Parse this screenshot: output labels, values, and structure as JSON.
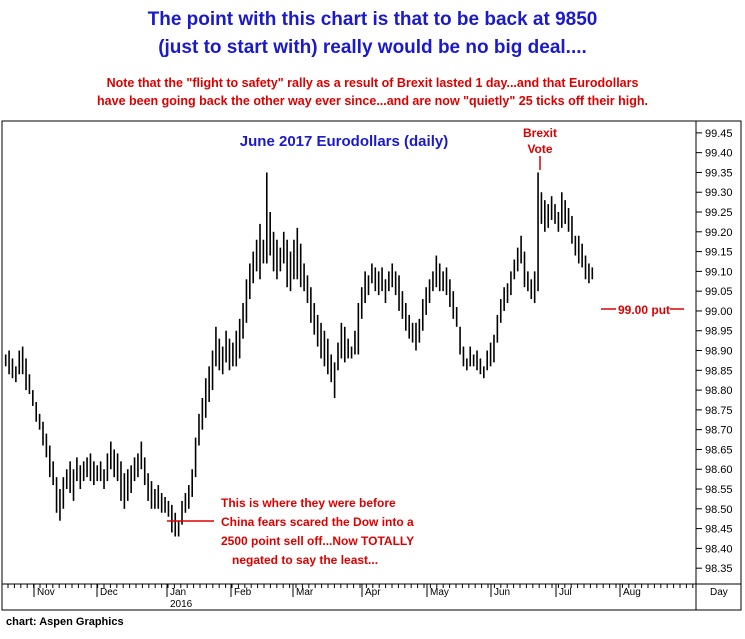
{
  "headline": {
    "line1": "The point with this chart is that to be back at 9850",
    "line2": "(just to start with) really would be no big deal...."
  },
  "note": {
    "line1": "Note that the \"flight to safety\" rally as a result of Brexit lasted 1 day...and that Eurodollars",
    "line2": "have been going back the other way ever since...and are now \"quietly\" 25 ticks off their  high."
  },
  "credit": "chart: Aspen Graphics",
  "colors": {
    "headline": "#1a1acc",
    "note": "#dd0000",
    "bars": "#000000",
    "frame": "#000000"
  },
  "chart_data": {
    "type": "ohlc",
    "title": "June 2017 Eurodollars (daily)",
    "y_axis_side": "right",
    "ylim": [
      98.31,
      99.48
    ],
    "yticks": [
      "99.45",
      "99.40",
      "99.35",
      "99.30",
      "99.25",
      "99.20",
      "99.15",
      "99.10",
      "99.05",
      "99.00",
      "98.95",
      "98.90",
      "98.85",
      "98.80",
      "98.75",
      "98.70",
      "98.65",
      "98.60",
      "98.55",
      "98.50",
      "98.45",
      "98.40",
      "98.35"
    ],
    "x_axis_label": "Day",
    "month_labels": [
      "Nov",
      "Dec",
      "Jan",
      "Feb",
      "Mar",
      "Apr",
      "May",
      "Jun",
      "Jul",
      "Aug"
    ],
    "year_label": "2016",
    "annotations": {
      "brexit_line1": "Brexit",
      "brexit_line2": "Vote",
      "put_label": "99.00 put",
      "china_line1": "This is where they were before",
      "china_line2": "China fears scared the Dow into a",
      "china_line3": "2500 point sell off...Now TOTALLY",
      "china_line4": "negated to say the least..."
    },
    "series": [
      {
        "values": [
          [
            98.89,
            98.86
          ],
          [
            98.9,
            98.84
          ],
          [
            98.88,
            98.83
          ],
          [
            98.86,
            98.82
          ],
          [
            98.9,
            98.84
          ],
          [
            98.91,
            98.84
          ],
          [
            98.88,
            98.8
          ],
          [
            98.84,
            98.79
          ],
          [
            98.8,
            98.76
          ],
          [
            98.77,
            98.72
          ],
          [
            98.74,
            98.7
          ],
          [
            98.72,
            98.66
          ],
          [
            98.69,
            98.63
          ],
          [
            98.66,
            98.58
          ],
          [
            98.62,
            98.56
          ],
          [
            98.58,
            98.49
          ],
          [
            98.55,
            98.47
          ],
          [
            98.58,
            98.5
          ],
          [
            98.6,
            98.55
          ],
          [
            98.62,
            98.54
          ],
          [
            98.6,
            98.52
          ],
          [
            98.63,
            98.57
          ],
          [
            98.61,
            98.55
          ],
          [
            98.62,
            98.57
          ],
          [
            98.63,
            98.58
          ],
          [
            98.64,
            98.57
          ],
          [
            98.62,
            98.56
          ],
          [
            98.61,
            98.57
          ],
          [
            98.62,
            98.57
          ],
          [
            98.6,
            98.55
          ],
          [
            98.64,
            98.57
          ],
          [
            98.67,
            98.6
          ],
          [
            98.65,
            98.58
          ],
          [
            98.64,
            98.57
          ],
          [
            98.62,
            98.52
          ],
          [
            98.59,
            98.5
          ],
          [
            98.6,
            98.52
          ],
          [
            98.61,
            98.54
          ],
          [
            98.63,
            98.57
          ],
          [
            98.64,
            98.58
          ],
          [
            98.67,
            98.6
          ],
          [
            98.63,
            98.56
          ],
          [
            98.59,
            98.52
          ],
          [
            98.57,
            98.5
          ],
          [
            98.55,
            98.5
          ],
          [
            98.56,
            98.5
          ],
          [
            98.54,
            98.49
          ],
          [
            98.53,
            98.49
          ],
          [
            98.52,
            98.48
          ],
          [
            98.51,
            98.44
          ],
          [
            98.49,
            98.43
          ],
          [
            98.47,
            98.43
          ],
          [
            98.52,
            98.46
          ],
          [
            98.54,
            98.49
          ],
          [
            98.56,
            98.5
          ],
          [
            98.6,
            98.53
          ],
          [
            98.68,
            98.58
          ],
          [
            98.74,
            98.66
          ],
          [
            98.78,
            98.7
          ],
          [
            98.83,
            98.73
          ],
          [
            98.86,
            98.77
          ],
          [
            98.9,
            98.8
          ],
          [
            98.96,
            98.86
          ],
          [
            98.93,
            98.85
          ],
          [
            98.91,
            98.84
          ],
          [
            98.95,
            98.87
          ],
          [
            98.93,
            98.85
          ],
          [
            98.92,
            98.86
          ],
          [
            98.95,
            98.86
          ],
          [
            98.98,
            98.88
          ],
          [
            99.02,
            98.93
          ],
          [
            99.08,
            98.97
          ],
          [
            99.12,
            99.03
          ],
          [
            99.15,
            99.07
          ],
          [
            99.18,
            99.1
          ],
          [
            99.22,
            99.08
          ],
          [
            99.18,
            99.12
          ],
          [
            99.35,
            99.12
          ],
          [
            99.25,
            99.14
          ],
          [
            99.2,
            99.1
          ],
          [
            99.18,
            99.08
          ],
          [
            99.16,
            99.1
          ],
          [
            99.2,
            99.12
          ],
          [
            99.18,
            99.06
          ],
          [
            99.15,
            99.05
          ],
          [
            99.18,
            99.08
          ],
          [
            99.21,
            99.08
          ],
          [
            99.17,
            99.06
          ],
          [
            99.12,
            99.05
          ],
          [
            99.09,
            99.02
          ],
          [
            99.06,
            98.97
          ],
          [
            99.02,
            98.94
          ],
          [
            98.99,
            98.91
          ],
          [
            98.97,
            98.88
          ],
          [
            98.95,
            98.86
          ],
          [
            98.93,
            98.84
          ],
          [
            98.89,
            98.82
          ],
          [
            98.87,
            98.78
          ],
          [
            98.92,
            98.85
          ],
          [
            98.97,
            98.88
          ],
          [
            98.96,
            98.87
          ],
          [
            98.93,
            98.88
          ],
          [
            98.91,
            98.88
          ],
          [
            98.95,
            98.89
          ],
          [
            99.02,
            98.89
          ],
          [
            99.06,
            98.98
          ],
          [
            99.1,
            99.02
          ],
          [
            99.09,
            99.04
          ],
          [
            99.12,
            99.07
          ],
          [
            99.11,
            99.05
          ],
          [
            99.1,
            99.04
          ],
          [
            99.11,
            99.05
          ],
          [
            99.08,
            99.02
          ],
          [
            99.1,
            99.05
          ],
          [
            99.12,
            99.06
          ],
          [
            99.1,
            99.04
          ],
          [
            99.09,
            99.0
          ],
          [
            99.05,
            98.98
          ],
          [
            99.02,
            98.95
          ],
          [
            98.99,
            98.93
          ],
          [
            98.97,
            98.92
          ],
          [
            98.97,
            98.9
          ],
          [
            98.98,
            98.92
          ],
          [
            99.03,
            98.95
          ],
          [
            99.06,
            98.99
          ],
          [
            99.08,
            99.02
          ],
          [
            99.1,
            99.05
          ],
          [
            99.14,
            99.06
          ],
          [
            99.12,
            99.05
          ],
          [
            99.1,
            99.05
          ],
          [
            99.11,
            99.04
          ],
          [
            99.08,
            99.01
          ],
          [
            99.05,
            98.98
          ],
          [
            99.01,
            98.96
          ],
          [
            98.96,
            98.89
          ],
          [
            98.91,
            98.86
          ],
          [
            98.88,
            98.85
          ],
          [
            98.91,
            98.86
          ],
          [
            98.89,
            98.86
          ],
          [
            98.9,
            98.85
          ],
          [
            98.88,
            98.84
          ],
          [
            98.86,
            98.83
          ],
          [
            98.9,
            98.85
          ],
          [
            98.92,
            98.86
          ],
          [
            98.94,
            98.87
          ],
          [
            98.99,
            98.92
          ],
          [
            99.03,
            98.97
          ],
          [
            99.06,
            99.0
          ],
          [
            99.07,
            99.02
          ],
          [
            99.1,
            99.04
          ],
          [
            99.13,
            99.08
          ],
          [
            99.16,
            99.1
          ],
          [
            99.19,
            99.12
          ],
          [
            99.15,
            99.06
          ],
          [
            99.1,
            99.05
          ],
          [
            99.08,
            99.03
          ],
          [
            99.1,
            99.02
          ],
          [
            99.35,
            99.05
          ],
          [
            99.3,
            99.22
          ],
          [
            99.28,
            99.2
          ],
          [
            99.27,
            99.21
          ],
          [
            99.29,
            99.23
          ],
          [
            99.27,
            99.22
          ],
          [
            99.25,
            99.2
          ],
          [
            99.3,
            99.21
          ],
          [
            99.28,
            99.22
          ],
          [
            99.26,
            99.2
          ],
          [
            99.24,
            99.17
          ],
          [
            99.19,
            99.14
          ],
          [
            99.19,
            99.12
          ],
          [
            99.17,
            99.11
          ],
          [
            99.14,
            99.08
          ],
          [
            99.12,
            99.07
          ],
          [
            99.11,
            99.08
          ]
        ]
      }
    ]
  }
}
